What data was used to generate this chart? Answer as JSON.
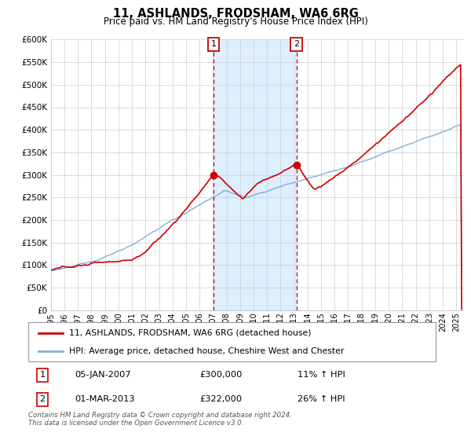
{
  "title": "11, ASHLANDS, FRODSHAM, WA6 6RG",
  "subtitle": "Price paid vs. HM Land Registry's House Price Index (HPI)",
  "legend_label_red": "11, ASHLANDS, FRODSHAM, WA6 6RG (detached house)",
  "legend_label_blue": "HPI: Average price, detached house, Cheshire West and Chester",
  "annotation1_label": "1",
  "annotation1_date": "05-JAN-2007",
  "annotation1_price": "£300,000",
  "annotation1_pct": "11% ↑ HPI",
  "annotation2_label": "2",
  "annotation2_date": "01-MAR-2013",
  "annotation2_price": "£322,000",
  "annotation2_pct": "26% ↑ HPI",
  "footer": "Contains HM Land Registry data © Crown copyright and database right 2024.\nThis data is licensed under the Open Government Licence v3.0.",
  "ylim": [
    0,
    600000
  ],
  "yticks": [
    0,
    50000,
    100000,
    150000,
    200000,
    250000,
    300000,
    350000,
    400000,
    450000,
    500000,
    550000,
    600000
  ],
  "xmin": 1995.0,
  "xmax": 2025.5,
  "vline1_x": 2007.04,
  "vline2_x": 2013.17,
  "shade_color": "#ddeeff",
  "red_color": "#cc0000",
  "blue_color": "#7fb0d8",
  "red_dot1_x": 2007.04,
  "red_dot1_y": 300000,
  "red_dot2_x": 2013.17,
  "red_dot2_y": 322000,
  "grid_color": "#cccccc",
  "title_fontsize": 10.5,
  "subtitle_fontsize": 8.5
}
